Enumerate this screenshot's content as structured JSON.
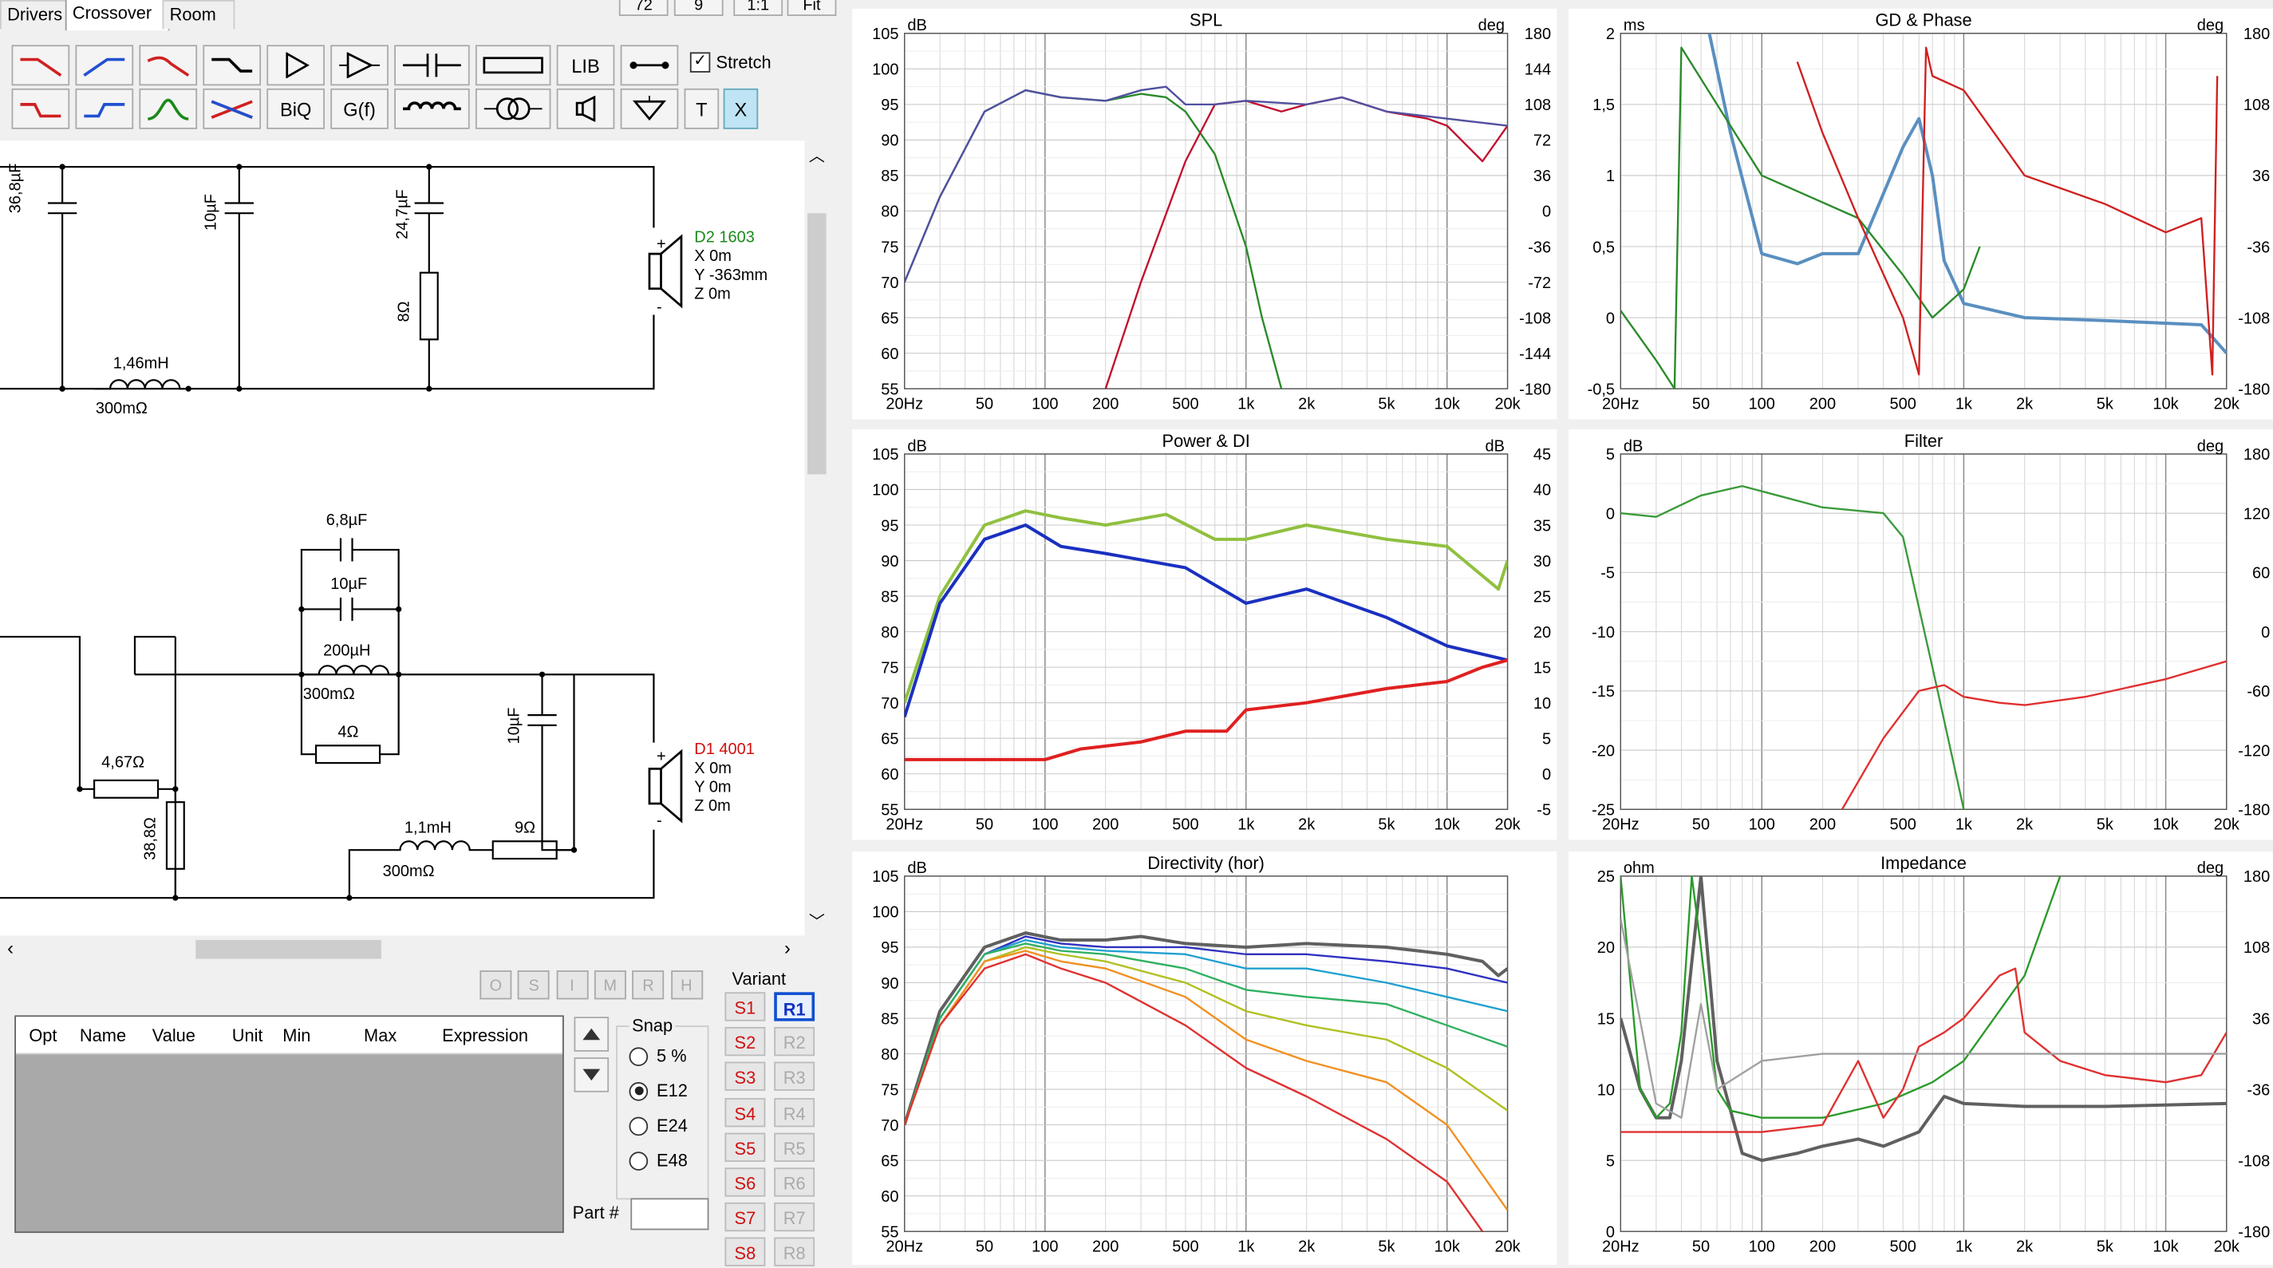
{
  "tabs": [
    {
      "label": "Drivers",
      "active": false
    },
    {
      "label": "Crossover",
      "active": true
    },
    {
      "label": "Room",
      "active": false
    }
  ],
  "topButtons": [
    "72",
    "9",
    "1:1",
    "Fit"
  ],
  "toolbar": {
    "row1": [
      "lowpass-1",
      "highpass-1",
      "lowpass-2",
      "lowpass-shelf",
      "buffer",
      "inverting-buffer",
      "capacitor",
      "resistor",
      "LIB",
      "wire"
    ],
    "row2": [
      "lowpass-3",
      "highpass-3",
      "bandpass",
      "notch",
      "BiQ",
      "G(f)",
      "inductor",
      "transformer",
      "driver",
      "ground",
      "T",
      "X"
    ],
    "stretch_label": "Stretch",
    "stretch_checked": true
  },
  "schematic": {
    "upper": {
      "capacitors": [
        "36,8µF",
        "10µF",
        "24,7µF"
      ],
      "resistor": "8Ω",
      "inductor": {
        "value": "1,46mH",
        "resistance": "300mΩ"
      },
      "driver": {
        "name": "D2 1603",
        "x": "X 0m",
        "y": "Y -363mm",
        "z": "Z 0m",
        "color": "#1a8a1a"
      }
    },
    "lower": {
      "cap_a": "6,8µF",
      "cap_b": "10µF",
      "inductor_a": {
        "value": "200µH",
        "resistance": "300mΩ"
      },
      "resistor_a": "4Ω",
      "resistor_b": "4,67Ω",
      "resistor_c": "38,8Ω",
      "cap_c": "10µF",
      "inductor_b": {
        "value": "1,1mH",
        "resistance": "300mΩ"
      },
      "resistor_d": "9Ω",
      "driver": {
        "name": "D1 4001",
        "x": "X 0m",
        "y": "Y 0m",
        "z": "Z 0m",
        "color": "#d01010"
      }
    }
  },
  "optimizer": {
    "buttons": [
      "O",
      "S",
      "I",
      "M",
      "R",
      "H"
    ],
    "columns": [
      "Opt",
      "Name",
      "Value",
      "Unit",
      "Min",
      "Max",
      "Expression"
    ]
  },
  "snap": {
    "label": "Snap",
    "options": [
      {
        "label": "5 %",
        "selected": false
      },
      {
        "label": "E12",
        "selected": true
      },
      {
        "label": "E24",
        "selected": false
      },
      {
        "label": "E48",
        "selected": false
      }
    ],
    "part_label": "Part #"
  },
  "variant": {
    "label": "Variant",
    "s": [
      "S1",
      "S2",
      "S3",
      "S4",
      "S5",
      "S6",
      "S7",
      "S8"
    ],
    "r": [
      "R1",
      "R2",
      "R3",
      "R4",
      "R5",
      "R6",
      "R7",
      "R8"
    ],
    "active_r": "R1"
  },
  "freq_ticks": [
    "20Hz",
    "50",
    "100",
    "200",
    "500",
    "1k",
    "2k",
    "5k",
    "10k",
    "20k"
  ],
  "graphs": {
    "spl": {
      "title": "SPL",
      "yunit": "dB",
      "runit": "deg",
      "yticks": [
        "105",
        "100",
        "95",
        "90",
        "85",
        "80",
        "75",
        "70",
        "65",
        "60",
        "55"
      ],
      "rticks": [
        "180",
        "144",
        "108",
        "72",
        "36",
        "0",
        "-36",
        "-72",
        "-108",
        "-144",
        "-180"
      ]
    },
    "gd": {
      "title": "GD & Phase",
      "yunit": "ms",
      "runit": "deg",
      "yticks": [
        "2",
        "1,5",
        "1",
        "0,5",
        "0",
        "-0,5"
      ],
      "rticks": [
        "180",
        "108",
        "36",
        "-36",
        "-108",
        "-180"
      ]
    },
    "power": {
      "title": "Power & DI",
      "yunit": "dB",
      "runit": "dB",
      "yticks": [
        "105",
        "100",
        "95",
        "90",
        "85",
        "80",
        "75",
        "70",
        "65",
        "60",
        "55"
      ],
      "rticks": [
        "45",
        "40",
        "35",
        "30",
        "25",
        "20",
        "15",
        "10",
        "5",
        "0",
        "-5"
      ]
    },
    "filter": {
      "title": "Filter",
      "yunit": "dB",
      "runit": "deg",
      "yticks": [
        "5",
        "0",
        "-5",
        "-10",
        "-15",
        "-20",
        "-25"
      ],
      "rticks": [
        "180",
        "120",
        "60",
        "0",
        "-60",
        "-120",
        "-180"
      ]
    },
    "directivity": {
      "title": "Directivity (hor)",
      "yunit": "dB",
      "yticks": [
        "105",
        "100",
        "95",
        "90",
        "85",
        "80",
        "75",
        "70",
        "65",
        "60",
        "55"
      ]
    },
    "impedance": {
      "title": "Impedance",
      "yunit": "ohm",
      "runit": "deg",
      "yticks": [
        "25",
        "20",
        "15",
        "10",
        "5",
        "0"
      ],
      "rticks": [
        "180",
        "108",
        "36",
        "-36",
        "-108",
        "-180"
      ]
    }
  },
  "chart_data": [
    {
      "type": "line",
      "title": "SPL",
      "xlabel": "",
      "ylabel": "dB",
      "xscale": "log",
      "xlim": [
        20,
        20000
      ],
      "ylim": [
        55,
        105
      ],
      "series": [
        {
          "color": "#2a8a2a",
          "x": [
            20,
            30,
            50,
            80,
            120,
            200,
            300,
            400,
            500,
            700,
            1000,
            1200,
            1500
          ],
          "values": [
            70,
            82,
            94,
            97,
            96,
            95.5,
            96.5,
            96,
            94,
            88,
            75,
            65,
            55
          ]
        },
        {
          "color": "#c01030",
          "x": [
            200,
            300,
            500,
            700,
            1000,
            1500,
            2000,
            3000,
            5000,
            8000,
            10000,
            15000,
            20000
          ],
          "values": [
            55,
            70,
            87,
            95,
            95.5,
            94,
            95,
            96,
            94,
            93,
            92,
            87,
            92
          ]
        },
        {
          "color": "#5050a0",
          "x": [
            20,
            30,
            50,
            80,
            120,
            200,
            300,
            400,
            500,
            700,
            1000,
            2000,
            3000,
            5000,
            10000,
            20000
          ],
          "values": [
            70,
            82,
            94,
            97,
            96,
            95.5,
            97,
            97.5,
            95,
            95,
            95.5,
            95,
            96,
            94,
            93,
            92
          ]
        }
      ]
    },
    {
      "type": "line",
      "title": "GD & Phase",
      "ylabel": "ms",
      "xscale": "log",
      "xlim": [
        20,
        20000
      ],
      "ylim": [
        -0.5,
        2
      ],
      "series": [
        {
          "color": "#5a8fc0",
          "x": [
            55,
            70,
            100,
            150,
            200,
            300,
            500,
            600,
            700,
            800,
            1000,
            2000,
            5000,
            15000,
            20000
          ],
          "values": [
            2,
            1.3,
            0.45,
            0.38,
            0.45,
            0.45,
            1.2,
            1.4,
            1.0,
            0.4,
            0.1,
            0.0,
            -0.02,
            -0.05,
            -0.25
          ]
        },
        {
          "color": "#2a8a2a",
          "x": [
            20,
            30,
            37,
            40,
            60,
            100,
            300,
            500,
            700,
            1000,
            1200
          ],
          "values": [
            0.05,
            -0.3,
            -0.5,
            1.9,
            1.5,
            1.0,
            0.7,
            0.3,
            0.0,
            0.2,
            0.5
          ]
        },
        {
          "color": "#d02020",
          "x": [
            150,
            200,
            300,
            500,
            600,
            650,
            700,
            1000,
            2000,
            5000,
            10000,
            15000,
            17000,
            18000
          ],
          "values": [
            1.8,
            1.3,
            0.7,
            0.0,
            -0.4,
            1.9,
            1.7,
            1.6,
            1.0,
            0.8,
            0.6,
            0.7,
            -0.4,
            1.7
          ]
        }
      ]
    },
    {
      "type": "line",
      "title": "Power & DI",
      "ylabel": "dB",
      "xscale": "log",
      "xlim": [
        20,
        20000
      ],
      "ylim": [
        55,
        105
      ],
      "series": [
        {
          "color": "#90c040",
          "x": [
            20,
            30,
            50,
            80,
            120,
            200,
            400,
            700,
            1000,
            2000,
            5000,
            10000,
            18000,
            20000
          ],
          "values": [
            70,
            85,
            95,
            97,
            96,
            95,
            96.5,
            93,
            93,
            95,
            93,
            92,
            86,
            90
          ]
        },
        {
          "color": "#1a30c0",
          "x": [
            20,
            30,
            50,
            80,
            120,
            200,
            500,
            1000,
            2000,
            5000,
            10000,
            20000
          ],
          "values": [
            68,
            84,
            93,
            95,
            92,
            91,
            89,
            84,
            86,
            82,
            78,
            76
          ]
        },
        {
          "color": "#e02020",
          "x": [
            20,
            100,
            150,
            300,
            500,
            800,
            1000,
            2000,
            5000,
            10000,
            15000,
            20000
          ],
          "values": [
            62,
            62,
            63.5,
            64.5,
            66,
            66,
            69,
            70,
            72,
            73,
            75,
            76
          ]
        }
      ]
    },
    {
      "type": "line",
      "title": "Filter",
      "ylabel": "dB",
      "xscale": "log",
      "xlim": [
        20,
        20000
      ],
      "ylim": [
        -25,
        5
      ],
      "series": [
        {
          "color": "#3a9a3a",
          "x": [
            20,
            30,
            50,
            80,
            120,
            200,
            400,
            500,
            700,
            1000
          ],
          "values": [
            0,
            -0.3,
            1.5,
            2.3,
            1.5,
            0.5,
            0,
            -2,
            -13,
            -25
          ]
        },
        {
          "color": "#e03030",
          "x": [
            250,
            400,
            600,
            800,
            1000,
            1500,
            2000,
            4000,
            10000,
            20000
          ],
          "values": [
            -25,
            -19,
            -15,
            -14.5,
            -15.5,
            -16,
            -16.2,
            -15.5,
            -14,
            -12.5
          ]
        }
      ]
    },
    {
      "type": "line",
      "title": "Directivity (hor)",
      "ylabel": "dB",
      "xscale": "log",
      "xlim": [
        20,
        20000
      ],
      "ylim": [
        55,
        105
      ],
      "series": [
        {
          "color": "#606060",
          "x": [
            20,
            30,
            50,
            80,
            120,
            200,
            300,
            500,
            1000,
            2000,
            5000,
            10000,
            15000,
            18000,
            20000
          ],
          "values": [
            70,
            86,
            95,
            97,
            96,
            96,
            96.5,
            95.5,
            95,
            95.5,
            95,
            94,
            93,
            91,
            92
          ]
        },
        {
          "color": "#3030c0",
          "x": [
            20,
            30,
            50,
            80,
            120,
            200,
            500,
            1000,
            2000,
            5000,
            10000,
            20000
          ],
          "values": [
            70,
            85,
            94,
            96.5,
            95.5,
            95,
            95,
            94,
            94,
            93,
            92,
            90
          ]
        },
        {
          "color": "#20a0d0",
          "x": [
            20,
            30,
            50,
            80,
            120,
            200,
            500,
            1000,
            2000,
            5000,
            10000,
            20000
          ],
          "values": [
            70,
            85,
            94,
            96,
            95,
            94.5,
            94,
            92,
            92,
            90,
            88,
            86
          ]
        },
        {
          "color": "#30b060",
          "x": [
            20,
            30,
            50,
            80,
            120,
            200,
            500,
            1000,
            2000,
            5000,
            10000,
            20000
          ],
          "values": [
            70,
            85,
            94,
            95.5,
            94.5,
            94,
            92,
            89,
            88,
            87,
            84,
            81
          ]
        },
        {
          "color": "#b0c020",
          "x": [
            20,
            30,
            50,
            80,
            120,
            200,
            500,
            1000,
            2000,
            5000,
            10000,
            20000
          ],
          "values": [
            70,
            84,
            93,
            95,
            94,
            93,
            90,
            86,
            84,
            82,
            78,
            72
          ]
        },
        {
          "color": "#f09020",
          "x": [
            20,
            30,
            50,
            80,
            120,
            200,
            500,
            1000,
            2000,
            5000,
            10000,
            20000
          ],
          "values": [
            70,
            84,
            93,
            94.5,
            93,
            92,
            88,
            82,
            79,
            76,
            70,
            58
          ]
        },
        {
          "color": "#e03030",
          "x": [
            20,
            30,
            50,
            80,
            120,
            200,
            500,
            1000,
            2000,
            5000,
            10000,
            15000
          ],
          "values": [
            70,
            84,
            92,
            94,
            92,
            90,
            84,
            78,
            74,
            68,
            62,
            55
          ]
        }
      ]
    },
    {
      "type": "line",
      "title": "Impedance",
      "ylabel": "ohm",
      "xscale": "log",
      "xlim": [
        20,
        20000
      ],
      "ylim": [
        0,
        25
      ],
      "series": [
        {
          "color": "#606060",
          "x": [
            20,
            25,
            30,
            35,
            40,
            50,
            60,
            80,
            100,
            150,
            200,
            300,
            400,
            600,
            800,
            1000,
            2000,
            5000,
            20000
          ],
          "values": [
            15,
            10,
            8,
            8,
            12,
            25,
            12,
            5.5,
            5,
            5.5,
            6,
            6.5,
            6,
            7,
            9.5,
            9,
            8.8,
            8.8,
            9
          ]
        },
        {
          "color": "#2a9a2a",
          "x": [
            20,
            25,
            30,
            35,
            40,
            45,
            50,
            60,
            70,
            100,
            200,
            400,
            700,
            1000,
            2000,
            3000
          ],
          "values": [
            25,
            10,
            8,
            9,
            14,
            25,
            20,
            10,
            8.5,
            8,
            8,
            9,
            10.5,
            12,
            18,
            25
          ]
        },
        {
          "color": "#e03030",
          "x": [
            20,
            100,
            200,
            300,
            400,
            500,
            600,
            800,
            1000,
            1500,
            1800,
            2000,
            3000,
            5000,
            10000,
            15000,
            20000
          ],
          "values": [
            7,
            7,
            7.5,
            12,
            8,
            10,
            13,
            14,
            15,
            18,
            18.5,
            14,
            12,
            11,
            10.5,
            11,
            14
          ]
        },
        {
          "color": "#a0a0a0",
          "x": [
            20,
            30,
            40,
            50,
            60,
            100,
            200,
            400,
            1000,
            5000,
            20000
          ],
          "values": [
            22,
            9,
            8,
            16,
            10,
            12,
            12.5,
            12.5,
            12.5,
            12.5,
            12.5
          ]
        }
      ]
    }
  ]
}
